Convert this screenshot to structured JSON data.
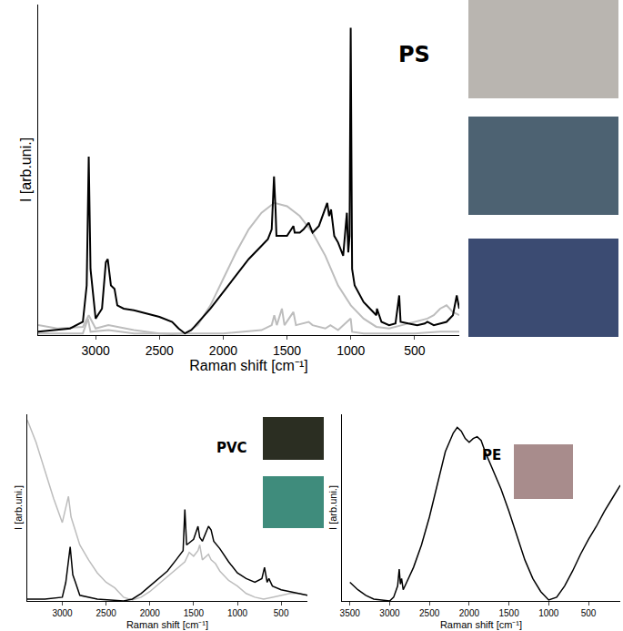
{
  "chart_data": [
    {
      "type": "line",
      "title": "PS",
      "xlabel": "Raman shift [cm⁻¹]",
      "ylabel": "I [arb.uni.]",
      "xlim": [
        3450,
        150
      ],
      "xticks": [
        3000,
        2500,
        2000,
        1500,
        1000,
        500
      ],
      "ylim": [
        0,
        100
      ],
      "tick_labels": "x",
      "series": [
        {
          "color": "#bdbdbd",
          "x": [
            3450,
            3300,
            3100,
            3054,
            3000,
            2900,
            2700,
            2500,
            2400,
            2300,
            2200,
            2100,
            2000,
            1900,
            1800,
            1700,
            1600,
            1500,
            1400,
            1300,
            1200,
            1100,
            1000,
            900,
            800,
            700,
            600,
            500,
            400,
            350,
            300,
            250,
            200,
            150
          ],
          "values": [
            3,
            2,
            2.5,
            6,
            2,
            3,
            1.5,
            0.5,
            0.3,
            0.5,
            3,
            9,
            17,
            25,
            32,
            37,
            40,
            39,
            36,
            31,
            24,
            15,
            9,
            5,
            2.5,
            2,
            3,
            4,
            5,
            6,
            8,
            9,
            7,
            6
          ]
        },
        {
          "color": "#bdbdbd",
          "x": [
            3450,
            3100,
            3060,
            3040,
            2900,
            2700,
            2000,
            1700,
            1620,
            1600,
            1580,
            1540,
            1520,
            1450,
            1430,
            1330,
            1300,
            1200,
            1160,
            1100,
            1001,
            990,
            900,
            500,
            300,
            150
          ],
          "values": [
            0.5,
            0.5,
            5,
            1,
            1.5,
            0.5,
            0.5,
            1.5,
            3,
            6,
            3,
            8,
            3,
            7,
            3,
            4,
            3,
            2,
            3,
            1.5,
            5,
            1,
            0.5,
            0.5,
            1,
            1
          ]
        },
        {
          "color": "#000000",
          "x": [
            3450,
            3300,
            3200,
            3100,
            3070,
            3054,
            3040,
            3000,
            2950,
            2920,
            2905,
            2880,
            2852,
            2830,
            2780,
            2700,
            2600,
            2500,
            2400,
            2350,
            2300,
            2250,
            2100,
            2000,
            1900,
            1800,
            1700,
            1650,
            1620,
            1602,
            1590,
            1583,
            1550,
            1500,
            1450,
            1440,
            1400,
            1370,
            1330,
            1300,
            1250,
            1200,
            1185,
            1170,
            1155,
            1130,
            1100,
            1060,
            1031,
            1020,
            1010,
            1001,
            990,
            970,
            900,
            850,
            800,
            795,
            760,
            700,
            650,
            621,
            610,
            550,
            480,
            420,
            400,
            350,
            300,
            250,
            200,
            170,
            150
          ],
          "values": [
            1,
            1.5,
            2,
            4,
            15,
            54,
            20,
            5,
            8,
            22,
            23,
            15,
            14,
            9,
            8,
            7.5,
            6.5,
            5.5,
            4,
            2,
            0.5,
            1.5,
            8,
            13,
            18,
            23,
            27,
            29,
            32,
            48,
            38,
            30,
            30,
            30,
            33,
            31,
            31,
            32,
            34,
            31,
            33,
            38,
            40,
            36,
            38,
            30,
            28,
            24,
            37,
            25,
            30,
            93,
            20,
            15,
            10,
            8,
            6,
            8,
            4,
            3,
            3.5,
            12,
            4,
            3.5,
            3,
            3.5,
            4,
            3,
            3.5,
            4,
            6,
            12,
            8
          ]
        }
      ]
    },
    {
      "type": "line",
      "title": "PVC",
      "xlabel": "Raman shift [cm⁻¹]",
      "ylabel": "I [arb.uni.]",
      "xlim": [
        3400,
        200
      ],
      "xticks": [
        3000,
        2500,
        2000,
        1500,
        1000,
        500
      ],
      "ylim": [
        0,
        100
      ],
      "tick_labels": "x",
      "series": [
        {
          "color": "#bdbdbd",
          "x": [
            3400,
            3300,
            3200,
            3100,
            3000,
            2960,
            2930,
            2900,
            2800,
            2700,
            2600,
            2500,
            2400,
            2300,
            2200,
            2100,
            2000,
            1900,
            1800,
            1700,
            1600,
            1550,
            1500,
            1450,
            1430,
            1400,
            1330,
            1300,
            1250,
            1200,
            1100,
            1000,
            900,
            800,
            700,
            600,
            500,
            400,
            300,
            200
          ],
          "values": [
            97,
            85,
            70,
            55,
            42,
            50,
            56,
            45,
            30,
            22,
            15,
            10,
            7,
            2,
            0.5,
            2,
            5,
            9,
            13,
            17,
            21,
            26,
            24,
            27,
            30,
            22,
            25,
            22,
            20,
            16,
            11,
            8,
            4,
            2,
            1,
            2,
            3,
            4,
            4,
            3
          ]
        },
        {
          "color": "#000000",
          "x": [
            3400,
            3200,
            3000,
            2960,
            2910,
            2880,
            2850,
            2800,
            2600,
            2400,
            2300,
            2200,
            2100,
            2000,
            1900,
            1800,
            1700,
            1620,
            1600,
            1580,
            1500,
            1450,
            1430,
            1400,
            1330,
            1300,
            1270,
            1200,
            1100,
            1000,
            900,
            800,
            720,
            690,
            660,
            640,
            600,
            500,
            400,
            300,
            200
          ],
          "values": [
            1,
            1,
            2,
            10,
            29,
            14,
            10,
            3,
            1,
            0.5,
            0,
            1,
            4,
            8,
            12,
            16,
            22,
            27,
            49,
            30,
            33,
            40,
            34,
            32,
            40,
            38,
            32,
            28,
            21,
            15,
            12,
            10,
            12,
            18,
            10,
            12,
            8,
            6,
            5,
            4,
            3
          ]
        }
      ]
    },
    {
      "type": "line",
      "title": "PE",
      "xlabel": "Raman shift [cm⁻¹]",
      "ylabel": "I [arb.uni.]",
      "xlim": [
        3600,
        100
      ],
      "xticks": [
        3500,
        3000,
        2500,
        2000,
        1500,
        1000,
        500
      ],
      "ylim": [
        0,
        100
      ],
      "tick_labels": "x",
      "series": [
        {
          "color": "#000000",
          "x": [
            3500,
            3400,
            3300,
            3200,
            3100,
            3000,
            2950,
            2900,
            2880,
            2865,
            2850,
            2830,
            2700,
            2600,
            2500,
            2400,
            2300,
            2200,
            2150,
            2100,
            2050,
            2000,
            1950,
            1900,
            1850,
            1800,
            1700,
            1600,
            1500,
            1400,
            1300,
            1200,
            1100,
            1000,
            900,
            800,
            700,
            600,
            500,
            400,
            300,
            200,
            100
          ],
          "values": [
            10,
            6,
            3,
            1,
            0.5,
            0,
            2,
            8,
            17,
            9,
            12,
            6,
            18,
            30,
            45,
            62,
            80,
            90,
            93,
            91,
            87,
            85,
            87,
            88,
            86,
            80,
            70,
            60,
            48,
            35,
            22,
            12,
            5,
            0.5,
            2,
            8,
            16,
            25,
            33,
            40,
            48,
            55,
            62
          ]
        }
      ]
    }
  ]
}
